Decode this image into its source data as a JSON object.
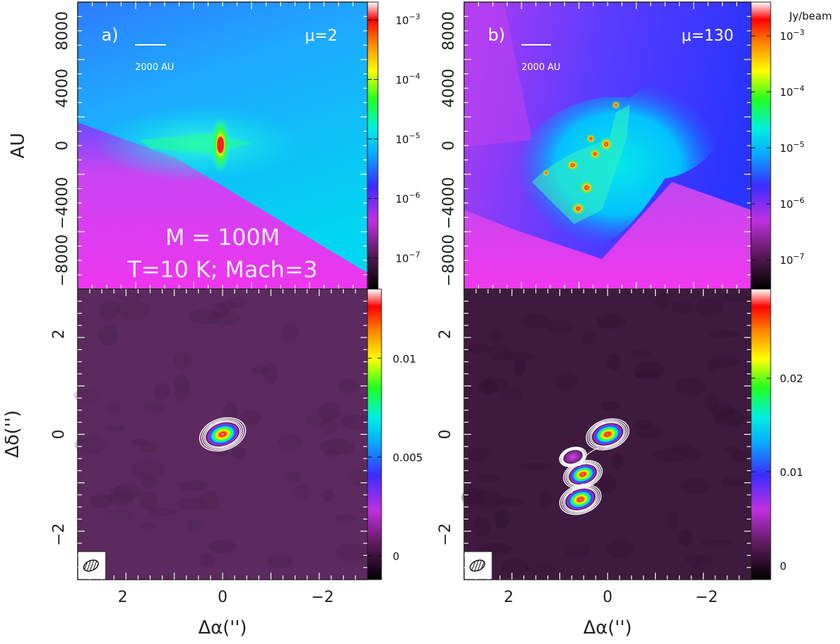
{
  "chart_data": [
    {
      "type": "heatmap",
      "panel_label": "a)",
      "mu_label": "μ=2",
      "scale_bar_label": "2000 AU",
      "annotation_line1": "M = 100M",
      "annotation_line2": "T=10 K; Mach=3",
      "ylabel": "AU",
      "yticks": [
        "8000",
        "4000",
        "0",
        "−4000",
        "−8000"
      ],
      "ytick_values": [
        8000,
        4000,
        0,
        -4000,
        -8000
      ],
      "ylim": [
        -10000,
        10000
      ],
      "colorbar": {
        "scale": "log",
        "min": 3e-08,
        "max": 0.002,
        "ticks": [
          {
            "value": 0.001,
            "label": "10−3"
          },
          {
            "value": 0.0001,
            "label": "10−4"
          },
          {
            "value": 1e-05,
            "label": "10−5"
          },
          {
            "value": 1e-06,
            "label": "10−6"
          },
          {
            "value": 1e-07,
            "label": "10−7"
          }
        ]
      }
    },
    {
      "type": "heatmap",
      "panel_label": "b)",
      "mu_label": "μ=130",
      "scale_bar_label": "2000 AU",
      "yticks": [
        "8000",
        "4000",
        "0",
        "−4000",
        "−8000"
      ],
      "ytick_values": [
        8000,
        4000,
        0,
        -4000,
        -8000
      ],
      "ylim": [
        -10000,
        10000
      ],
      "colorbar": {
        "scale": "log",
        "units": "Jy/beam",
        "min": 3e-08,
        "max": 0.004,
        "ticks": [
          {
            "value": 0.001,
            "label": "10−3"
          },
          {
            "value": 0.0001,
            "label": "10−4"
          },
          {
            "value": 1e-05,
            "label": "10−5"
          },
          {
            "value": 1e-06,
            "label": "10−6"
          },
          {
            "value": 1e-07,
            "label": "10−7"
          }
        ]
      }
    },
    {
      "type": "heatmap",
      "xlabel": "Δα('')",
      "ylabel": "Δδ('')",
      "xticks": [
        "2",
        "0",
        "−2"
      ],
      "xtick_values": [
        2,
        0,
        -2
      ],
      "yticks": [
        "2",
        "0",
        "−2"
      ],
      "ytick_values": [
        2,
        0,
        -2
      ],
      "xlim": [
        2.9,
        -2.9
      ],
      "ylim": [
        -2.9,
        2.9
      ],
      "sources": [
        {
          "x": 0.0,
          "y": 0.0,
          "peak": 0.0125
        }
      ],
      "colorbar": {
        "scale": "linear",
        "min": -0.0012,
        "max": 0.0135,
        "ticks": [
          {
            "value": 0.01,
            "label": "0.01"
          },
          {
            "value": 0.005,
            "label": "0.005"
          },
          {
            "value": 0,
            "label": "0"
          }
        ]
      }
    },
    {
      "type": "heatmap",
      "xlabel": "Δα('')",
      "xticks": [
        "2",
        "0",
        "−2"
      ],
      "xtick_values": [
        2,
        0,
        -2
      ],
      "yticks": [
        "2",
        "0",
        "−2"
      ],
      "ytick_values": [
        2,
        0,
        -2
      ],
      "xlim": [
        2.9,
        -2.9
      ],
      "ylim": [
        -2.9,
        2.9
      ],
      "sources": [
        {
          "x": 0.0,
          "y": 0.0,
          "peak": 0.026
        },
        {
          "x": 0.5,
          "y": -0.8,
          "peak": 0.02
        },
        {
          "x": 0.55,
          "y": -1.3,
          "peak": 0.024
        },
        {
          "x": 0.7,
          "y": -0.45,
          "peak": 0.003
        }
      ],
      "colorbar": {
        "scale": "linear",
        "min": -0.0015,
        "max": 0.0295,
        "ticks": [
          {
            "value": 0.02,
            "label": "0.02"
          },
          {
            "value": 0.01,
            "label": "0.01"
          },
          {
            "value": 0,
            "label": "0"
          }
        ]
      }
    }
  ]
}
